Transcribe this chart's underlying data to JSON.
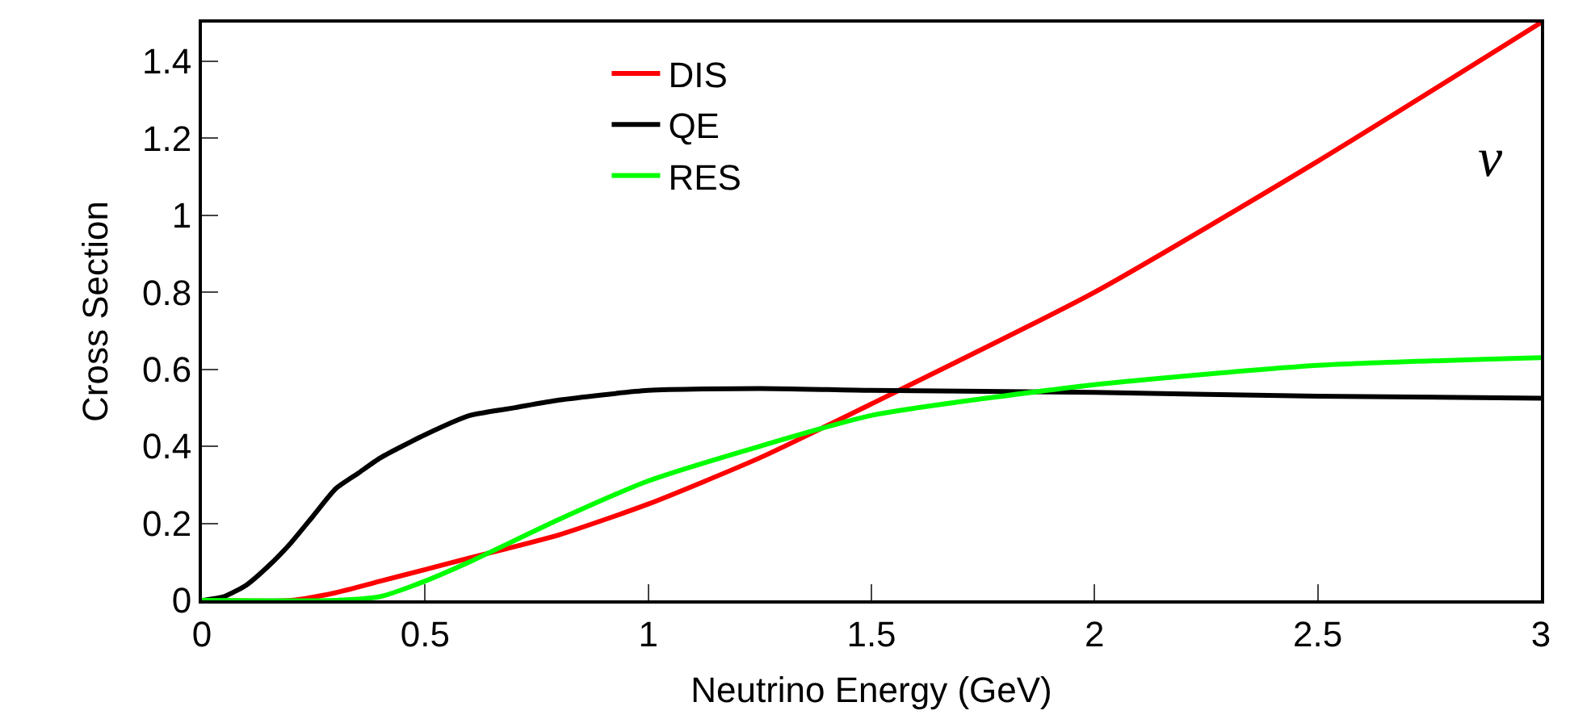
{
  "chart_data": {
    "type": "line",
    "xlabel": "Neutrino Energy (GeV)",
    "ylabel": "Cross Section",
    "xlim": [
      0,
      3
    ],
    "xticks": [
      0,
      0.5,
      1,
      1.5,
      2,
      2.5,
      3
    ],
    "ylim": [
      0,
      1.5
    ],
    "yticks": [
      0,
      0.2,
      0.4,
      0.6,
      0.8,
      1,
      1.2,
      1.4
    ],
    "legend": "top left",
    "marker": "none",
    "line_style": "solid",
    "annotations": [
      "ν"
    ],
    "series": [
      {
        "name": "DIS",
        "color": "#ff0000",
        "x": [
          0,
          0.2,
          0.3,
          0.4,
          0.5,
          0.6,
          0.8,
          1.0,
          1.25,
          1.5,
          2,
          2.5,
          3
        ],
        "values": [
          0,
          0,
          0.02,
          0.05,
          0.08,
          0.11,
          0.17,
          0.25,
          0.37,
          0.51,
          0.8,
          1.14,
          1.5
        ]
      },
      {
        "name": "QE",
        "color": "#000000",
        "x": [
          0,
          0.05,
          0.1,
          0.15,
          0.2,
          0.25,
          0.3,
          0.35,
          0.4,
          0.5,
          0.6,
          0.7,
          0.8,
          1.0,
          1.25,
          1.5,
          2,
          2.5,
          3
        ],
        "values": [
          0,
          0.01,
          0.04,
          0.09,
          0.15,
          0.22,
          0.29,
          0.33,
          0.37,
          0.43,
          0.48,
          0.5,
          0.52,
          0.545,
          0.55,
          0.545,
          0.54,
          0.53,
          0.525
        ]
      },
      {
        "name": "RES",
        "color": "#00ff00",
        "x": [
          0,
          0.3,
          0.4,
          0.5,
          0.6,
          0.8,
          1.0,
          1.25,
          1.5,
          2,
          2.5,
          3
        ],
        "values": [
          0,
          0,
          0.01,
          0.05,
          0.1,
          0.21,
          0.31,
          0.4,
          0.48,
          0.56,
          0.61,
          0.63
        ]
      }
    ]
  }
}
